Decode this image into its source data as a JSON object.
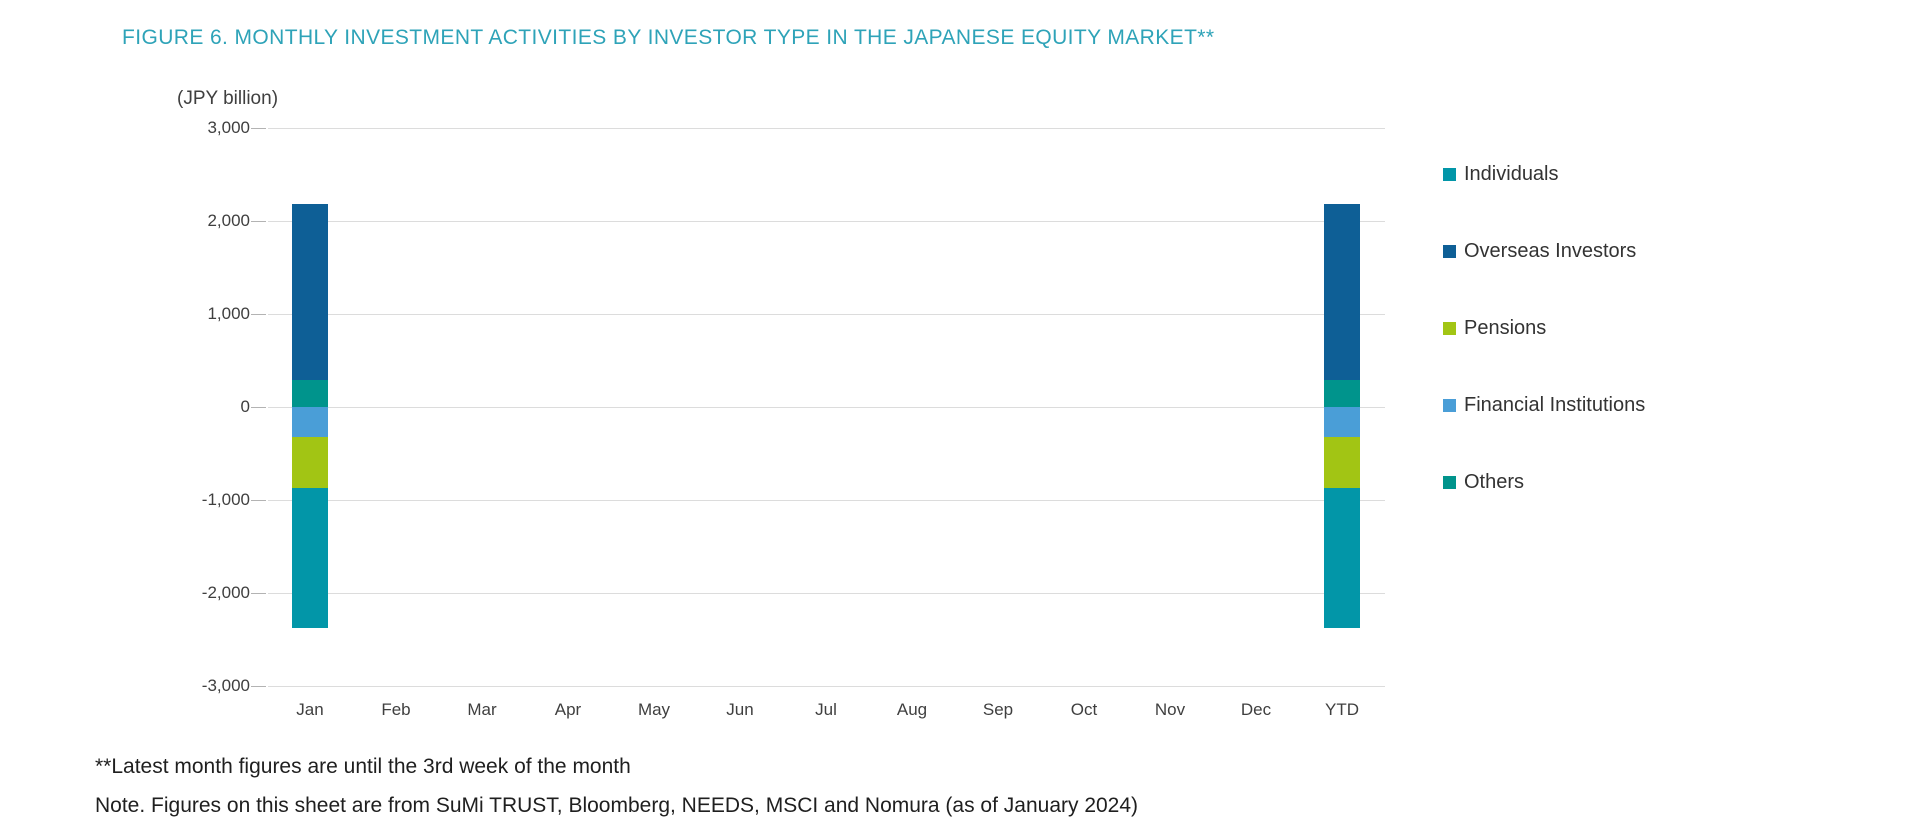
{
  "figure": {
    "title": "FIGURE 6. MONTHLY INVESTMENT ACTIVITIES BY INVESTOR TYPE IN THE JAPANESE EQUITY MARKET**",
    "title_color": "#2ea3b8",
    "axis_unit_label": "(JPY billion)",
    "footnote_line1": "**Latest month figures are until the 3rd week of the month",
    "footnote_line2": "Note. Figures on this sheet are from SuMi TRUST, Bloomberg, NEEDS, MSCI and Nomura (as of January 2024)"
  },
  "chart_data": {
    "type": "bar",
    "stacked": true,
    "title": "FIGURE 6. MONTHLY INVESTMENT ACTIVITIES BY INVESTOR TYPE IN THE JAPANESE EQUITY MARKET**",
    "xlabel": "",
    "ylabel": "(JPY billion)",
    "categories": [
      "Jan",
      "Feb",
      "Mar",
      "Apr",
      "May",
      "Jun",
      "Jul",
      "Aug",
      "Sep",
      "Oct",
      "Nov",
      "Dec",
      "YTD"
    ],
    "series": [
      {
        "name": "Individuals",
        "color": "#0296a8",
        "values": [
          -1510,
          0,
          0,
          0,
          0,
          0,
          0,
          0,
          0,
          0,
          0,
          0,
          -1510
        ]
      },
      {
        "name": "Overseas Investors",
        "color": "#0e5f96",
        "values": [
          1890,
          0,
          0,
          0,
          0,
          0,
          0,
          0,
          0,
          0,
          0,
          0,
          1890
        ]
      },
      {
        "name": "Pensions",
        "color": "#a2c514",
        "values": [
          -550,
          0,
          0,
          0,
          0,
          0,
          0,
          0,
          0,
          0,
          0,
          0,
          -550
        ]
      },
      {
        "name": "Financial Institutions",
        "color": "#4a9ed7",
        "values": [
          -320,
          0,
          0,
          0,
          0,
          0,
          0,
          0,
          0,
          0,
          0,
          0,
          -320
        ]
      },
      {
        "name": "Others",
        "color": "#00948c",
        "values": [
          290,
          0,
          0,
          0,
          0,
          0,
          0,
          0,
          0,
          0,
          0,
          0,
          290
        ]
      }
    ],
    "stack_order": [
      "Others",
      "Overseas Investors",
      "Financial Institutions",
      "Pensions",
      "Individuals"
    ],
    "legend_order": [
      "Individuals",
      "Overseas Investors",
      "Pensions",
      "Financial Institutions",
      "Others"
    ],
    "legend_position": "right",
    "ylim": [
      -3000,
      3000
    ],
    "ytick_interval": 1000,
    "ytick_labels": [
      "3,000",
      "2,000",
      "1,000",
      "0",
      "-1,000",
      "-2,000",
      "-3,000"
    ],
    "grid": true
  }
}
